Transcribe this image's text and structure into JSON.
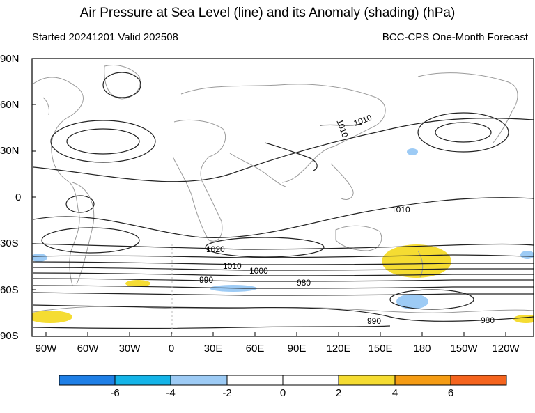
{
  "title": "Air Pressure at Sea Level (line) and its Anomaly (shading) (hPa)",
  "subtitle_left": "Started 20241201  Valid 202508",
  "subtitle_right": "BCC-CPS One-Month Forecast",
  "lat_labels": [
    "90N",
    "60N",
    "30N",
    "0",
    "30S",
    "60S",
    "90S"
  ],
  "lon_labels": [
    "90W",
    "60W",
    "30W",
    "0",
    "30E",
    "60E",
    "90E",
    "120E",
    "150E",
    "180",
    "150W",
    "120W"
  ],
  "contour_labels": [
    "1010",
    "1010",
    "1010",
    "1020",
    "1010",
    "1000",
    "990",
    "980",
    "990",
    "980"
  ],
  "colorbar": {
    "labels": [
      "-6",
      "-4",
      "-2",
      "0",
      "2",
      "4",
      "6"
    ],
    "colors": [
      "#1f7fe6",
      "#14b4e8",
      "#9dcbf5",
      "#ffffff",
      "#ffffff",
      "#f5dc32",
      "#f59c14",
      "#f5641e"
    ]
  },
  "shading_colors": {
    "positive_weak": "#f5dc32",
    "negative_weak": "#9dcbf5"
  }
}
